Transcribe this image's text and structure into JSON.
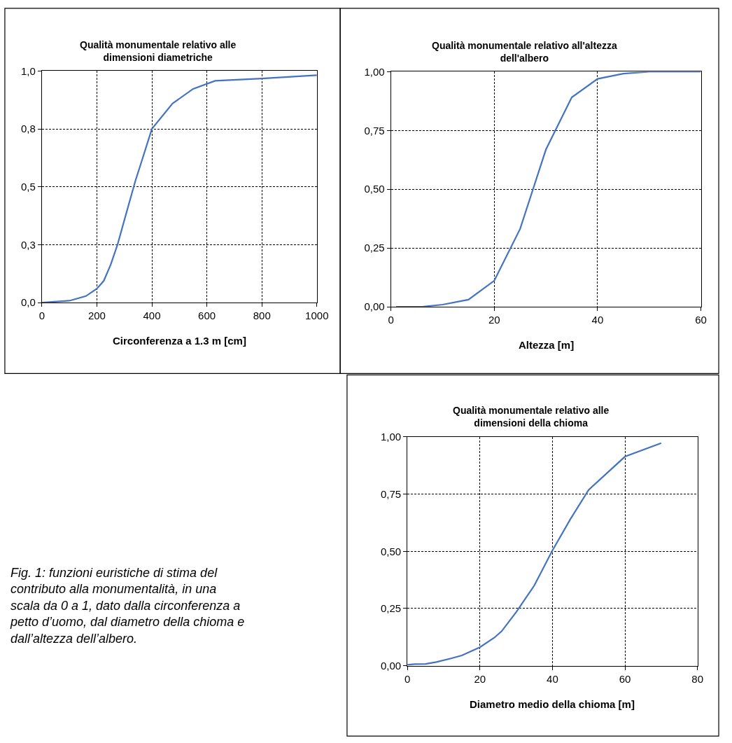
{
  "chart_data": [
    {
      "type": "line",
      "title": "Qualità monumentale relativo alle dimensioni diametriche",
      "xlabel": "Circonferenza a 1.3 m [cm]",
      "x": [
        0,
        100,
        160,
        200,
        225,
        250,
        275,
        300,
        340,
        360,
        400,
        475,
        550,
        630,
        800,
        1000
      ],
      "series": [
        {
          "color": "#4472c4",
          "values": [
            0,
            0.008,
            0.028,
            0.06,
            0.094,
            0.163,
            0.25,
            0.357,
            0.526,
            0.6,
            0.75,
            0.86,
            0.923,
            0.958,
            0.968,
            0.982
          ]
        }
      ],
      "xlim": [
        0,
        1000
      ],
      "xticks": [
        0,
        200,
        400,
        600,
        800,
        1000
      ],
      "ylim": [
        0,
        1
      ],
      "yticks": [
        {
          "value": 0,
          "label": "0,0"
        },
        {
          "value": 0.25,
          "label": "0,3"
        },
        {
          "value": 0.5,
          "label": "0,5"
        },
        {
          "value": 0.75,
          "label": "0,8"
        },
        {
          "value": 1,
          "label": "1,0"
        }
      ],
      "grid": true,
      "line_style": "solid",
      "marker": "none"
    },
    {
      "type": "line",
      "title": "Qualità monumentale relativo all'altezza dell'albero",
      "xlabel": "Altezza [m]",
      "x": [
        1,
        6,
        10,
        15,
        20,
        25,
        30,
        35,
        40,
        45,
        50,
        60
      ],
      "series": [
        {
          "color": "#4472c4",
          "values": [
            0,
            0,
            0.009,
            0.03,
            0.111,
            0.331,
            0.669,
            0.891,
            0.97,
            0.992,
            1.0,
            1.0
          ]
        }
      ],
      "xlim": [
        0,
        60
      ],
      "xticks": [
        0,
        20,
        40,
        60
      ],
      "ylim": [
        0,
        1
      ],
      "yticks": [
        {
          "value": 0,
          "label": "0,00"
        },
        {
          "value": 0.25,
          "label": "0,25"
        },
        {
          "value": 0.5,
          "label": "0,50"
        },
        {
          "value": 0.75,
          "label": "0,75"
        },
        {
          "value": 1,
          "label": "1,00"
        }
      ],
      "grid": true,
      "line_style": "solid",
      "marker": "none"
    },
    {
      "type": "line",
      "title": "Qualità monumentale relativo alle dimensioni della chioma",
      "xlabel": "Diametro medio della chioma [m]",
      "x": [
        0,
        2,
        5,
        8,
        12,
        15,
        20,
        24,
        26,
        30,
        35,
        40,
        45,
        50,
        60,
        70
      ],
      "series": [
        {
          "color": "#4472c4",
          "values": [
            0.004,
            0.007,
            0.008,
            0.016,
            0.032,
            0.045,
            0.081,
            0.123,
            0.151,
            0.234,
            0.351,
            0.504,
            0.642,
            0.769,
            0.914,
            0.973
          ]
        }
      ],
      "xlim": [
        0,
        80
      ],
      "xticks": [
        0,
        20,
        40,
        60,
        80
      ],
      "ylim": [
        0,
        1
      ],
      "yticks": [
        {
          "value": 0,
          "label": "0,00"
        },
        {
          "value": 0.25,
          "label": "0,25"
        },
        {
          "value": 0.5,
          "label": "0,50"
        },
        {
          "value": 0.75,
          "label": "0,75"
        },
        {
          "value": 1,
          "label": "1,00"
        }
      ],
      "grid": true,
      "line_style": "solid",
      "marker": "none",
      "annotations": [
        "Fig. 1: funzioni euristiche di stima del contributo alla monumentalità, in una scala da 0 a 1, dato dalla circonferenza a petto d’uomo, dal diametro della chioma e dall’altezza dell’albero."
      ]
    }
  ]
}
